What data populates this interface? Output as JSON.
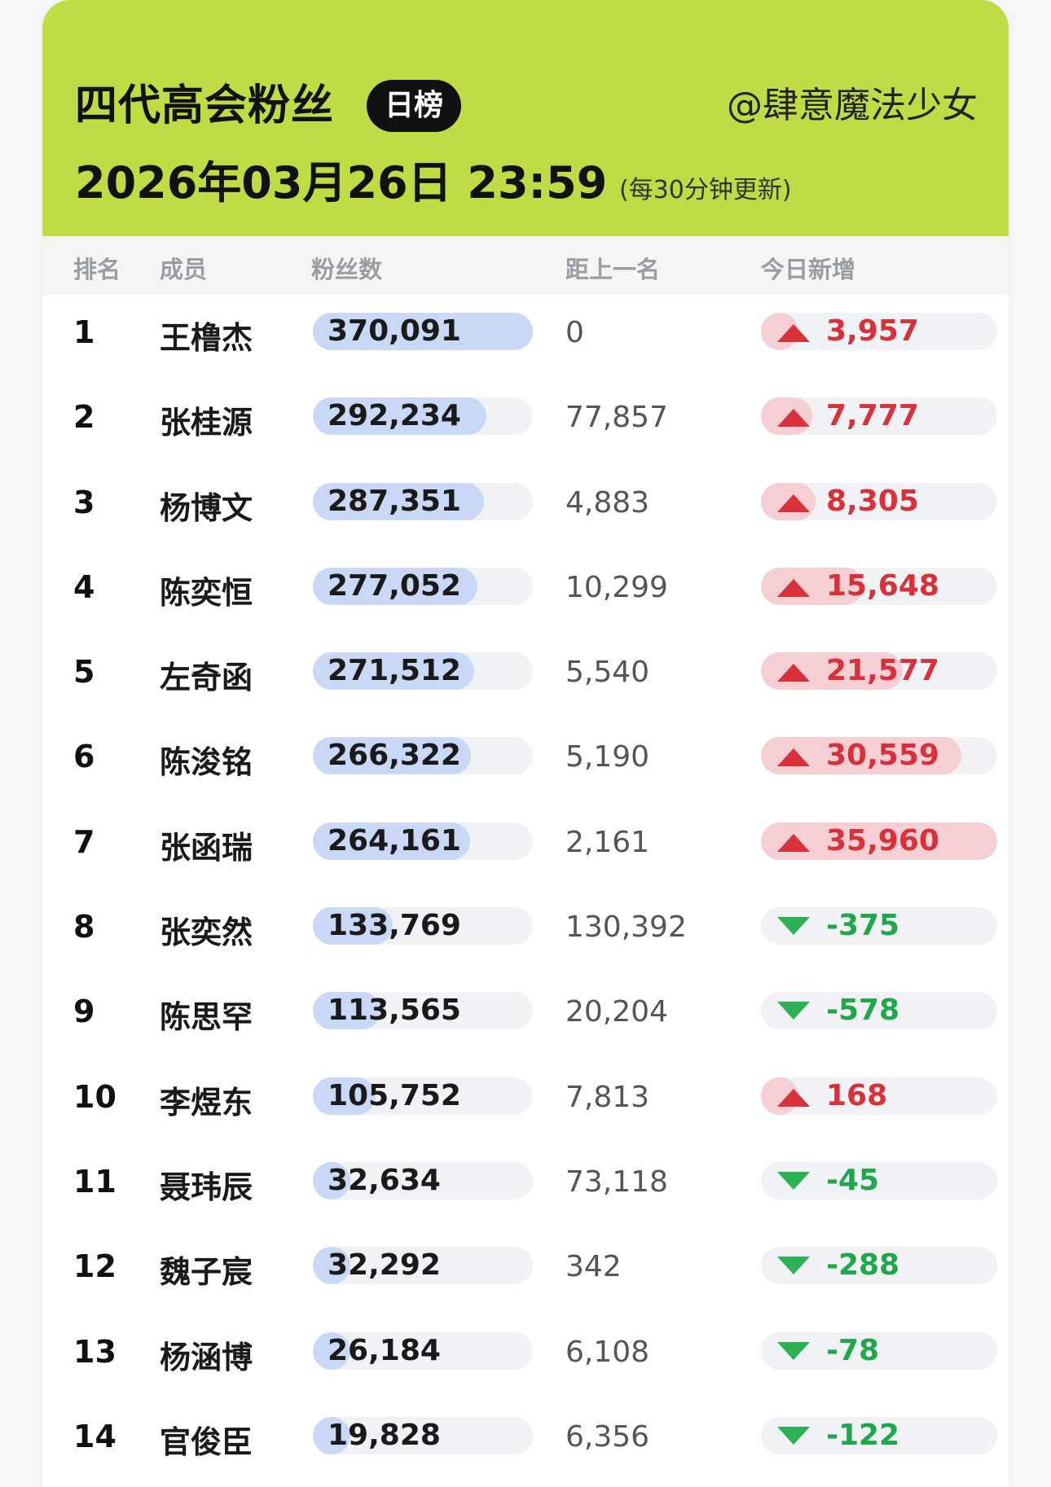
{
  "header": {
    "title": "四代高会粉丝",
    "badge": "日榜",
    "author": "@肆意魔法少女",
    "datetime": "2026年03月26日 23:59",
    "update_note": "(每30分钟更新)"
  },
  "columns": {
    "rank": "排名",
    "member": "成员",
    "fans": "粉丝数",
    "gap": "距上一名",
    "today": "今日新增"
  },
  "colors": {
    "header_bg": "#bfdc45",
    "fans_bar": "#c8d8f6",
    "up_bar": "#f5cfd3",
    "up_text": "#d9303a",
    "down_text": "#1fa84b"
  },
  "rows": [
    {
      "rank": "1",
      "member": "王橹杰",
      "fans": "370,091",
      "fans_value": 370091,
      "gap": "0",
      "today": "3,957",
      "today_value": 3957,
      "trend": "up"
    },
    {
      "rank": "2",
      "member": "张桂源",
      "fans": "292,234",
      "fans_value": 292234,
      "gap": "77,857",
      "today": "7,777",
      "today_value": 7777,
      "trend": "up"
    },
    {
      "rank": "3",
      "member": "杨博文",
      "fans": "287,351",
      "fans_value": 287351,
      "gap": "4,883",
      "today": "8,305",
      "today_value": 8305,
      "trend": "up"
    },
    {
      "rank": "4",
      "member": "陈奕恒",
      "fans": "277,052",
      "fans_value": 277052,
      "gap": "10,299",
      "today": "15,648",
      "today_value": 15648,
      "trend": "up"
    },
    {
      "rank": "5",
      "member": "左奇函",
      "fans": "271,512",
      "fans_value": 271512,
      "gap": "5,540",
      "today": "21,577",
      "today_value": 21577,
      "trend": "up"
    },
    {
      "rank": "6",
      "member": "陈浚铭",
      "fans": "266,322",
      "fans_value": 266322,
      "gap": "5,190",
      "today": "30,559",
      "today_value": 30559,
      "trend": "up"
    },
    {
      "rank": "7",
      "member": "张函瑞",
      "fans": "264,161",
      "fans_value": 264161,
      "gap": "2,161",
      "today": "35,960",
      "today_value": 35960,
      "trend": "up"
    },
    {
      "rank": "8",
      "member": "张奕然",
      "fans": "133,769",
      "fans_value": 133769,
      "gap": "130,392",
      "today": "-375",
      "today_value": -375,
      "trend": "down"
    },
    {
      "rank": "9",
      "member": "陈思罕",
      "fans": "113,565",
      "fans_value": 113565,
      "gap": "20,204",
      "today": "-578",
      "today_value": -578,
      "trend": "down"
    },
    {
      "rank": "10",
      "member": "李煜东",
      "fans": "105,752",
      "fans_value": 105752,
      "gap": "7,813",
      "today": "168",
      "today_value": 168,
      "trend": "up"
    },
    {
      "rank": "11",
      "member": "聂玮辰",
      "fans": "32,634",
      "fans_value": 32634,
      "gap": "73,118",
      "today": "-45",
      "today_value": -45,
      "trend": "down"
    },
    {
      "rank": "12",
      "member": "魏子宸",
      "fans": "32,292",
      "fans_value": 32292,
      "gap": "342",
      "today": "-288",
      "today_value": -288,
      "trend": "down"
    },
    {
      "rank": "13",
      "member": "杨涵博",
      "fans": "26,184",
      "fans_value": 26184,
      "gap": "6,108",
      "today": "-78",
      "today_value": -78,
      "trend": "down"
    },
    {
      "rank": "14",
      "member": "官俊臣",
      "fans": "19,828",
      "fans_value": 19828,
      "gap": "6,356",
      "today": "-122",
      "today_value": -122,
      "trend": "down"
    }
  ]
}
